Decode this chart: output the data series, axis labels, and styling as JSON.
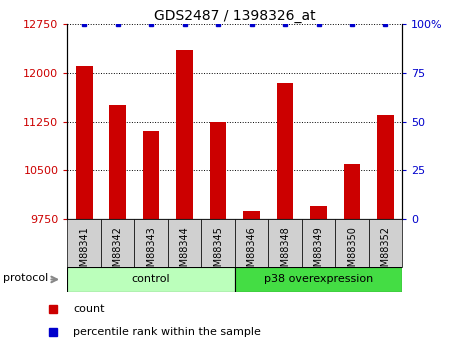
{
  "title": "GDS2487 / 1398326_at",
  "samples": [
    "GSM88341",
    "GSM88342",
    "GSM88343",
    "GSM88344",
    "GSM88345",
    "GSM88346",
    "GSM88348",
    "GSM88349",
    "GSM88350",
    "GSM88352"
  ],
  "counts": [
    12100,
    11500,
    11100,
    12350,
    11250,
    9870,
    11850,
    9950,
    10600,
    11350
  ],
  "percentile_ranks": [
    100,
    100,
    100,
    100,
    100,
    100,
    100,
    100,
    100,
    100
  ],
  "bar_color": "#cc0000",
  "dot_color": "#0000cc",
  "ylim_left": [
    9750,
    12750
  ],
  "ylim_right": [
    0,
    100
  ],
  "yticks_left": [
    9750,
    10500,
    11250,
    12000,
    12750
  ],
  "yticks_right": [
    0,
    25,
    50,
    75,
    100
  ],
  "group_control_color": "#bbffbb",
  "group_p38_color": "#44dd44",
  "groups": [
    {
      "label": "control",
      "start": 0,
      "end": 5
    },
    {
      "label": "p38 overexpression",
      "start": 5,
      "end": 10
    }
  ],
  "protocol_label": "protocol",
  "legend_items": [
    {
      "label": "count",
      "color": "#cc0000"
    },
    {
      "label": "percentile rank within the sample",
      "color": "#0000cc"
    }
  ],
  "bg_color": "#ffffff",
  "tick_label_color_left": "#cc0000",
  "tick_label_color_right": "#0000cc",
  "xlabel_bg_color": "#d0d0d0",
  "bar_width": 0.5
}
